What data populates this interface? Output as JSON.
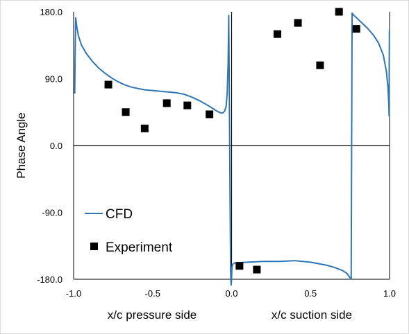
{
  "chart_data": {
    "type": "line",
    "title": "",
    "ylabel": "Phase Angle",
    "xlabels": [
      "x/c pressure side",
      "x/c suction side"
    ],
    "xlim": [
      -1.0,
      1.0
    ],
    "ylim": [
      -180,
      180
    ],
    "x_ticks": [
      "-1.0",
      "-0.5",
      "0.0",
      "0.5",
      "1.0"
    ],
    "y_ticks": [
      "180.0",
      "90.0",
      "0.0",
      "-90.0",
      "-180.0"
    ],
    "grid": false,
    "legend_position": "lower-left",
    "colors": {
      "cfd": "#2e75b6",
      "experiment": "#000000",
      "axis": "#000000"
    },
    "series": [
      {
        "name": "CFD",
        "style": "line",
        "points": [
          [
            -0.993,
            70
          ],
          [
            -0.99,
            130
          ],
          [
            -0.987,
            172
          ],
          [
            -0.98,
            160
          ],
          [
            -0.97,
            148
          ],
          [
            -0.95,
            135
          ],
          [
            -0.92,
            124
          ],
          [
            -0.88,
            113
          ],
          [
            -0.84,
            104
          ],
          [
            -0.8,
            97
          ],
          [
            -0.76,
            91
          ],
          [
            -0.72,
            86
          ],
          [
            -0.68,
            82
          ],
          [
            -0.64,
            79
          ],
          [
            -0.6,
            77
          ],
          [
            -0.55,
            75
          ],
          [
            -0.5,
            74
          ],
          [
            -0.45,
            73
          ],
          [
            -0.4,
            72
          ],
          [
            -0.35,
            71
          ],
          [
            -0.3,
            69
          ],
          [
            -0.25,
            65
          ],
          [
            -0.2,
            60
          ],
          [
            -0.15,
            54
          ],
          [
            -0.12,
            50
          ],
          [
            -0.09,
            46
          ],
          [
            -0.07,
            44
          ],
          [
            -0.055,
            44
          ],
          [
            -0.045,
            46
          ],
          [
            -0.035,
            52
          ],
          [
            -0.028,
            70
          ],
          [
            -0.022,
            110
          ],
          [
            -0.018,
            175
          ],
          [
            -0.014,
            60
          ],
          [
            -0.01,
            -60
          ],
          [
            -0.006,
            -170
          ],
          [
            -0.003,
            -188
          ],
          [
            0.0,
            -180
          ],
          [
            0.002,
            -165
          ],
          [
            0.006,
            -160
          ],
          [
            0.02,
            -158
          ],
          [
            0.1,
            -157
          ],
          [
            0.2,
            -156
          ],
          [
            0.3,
            -156
          ],
          [
            0.4,
            -155
          ],
          [
            0.45,
            -156
          ],
          [
            0.5,
            -157
          ],
          [
            0.55,
            -159
          ],
          [
            0.6,
            -161
          ],
          [
            0.65,
            -164
          ],
          [
            0.7,
            -168
          ],
          [
            0.73,
            -172
          ],
          [
            0.75,
            -178
          ],
          [
            0.757,
            -180
          ],
          [
            0.763,
            178
          ],
          [
            0.78,
            174
          ],
          [
            0.82,
            166
          ],
          [
            0.86,
            158
          ],
          [
            0.9,
            148
          ],
          [
            0.93,
            138
          ],
          [
            0.96,
            122
          ],
          [
            0.98,
            100
          ],
          [
            0.99,
            78
          ],
          [
            0.995,
            57
          ],
          [
            0.997,
            40
          ],
          [
            0.998,
            110
          ],
          [
            0.999,
            155
          ]
        ]
      },
      {
        "name": "Experiment",
        "style": "marker",
        "points": [
          [
            -0.78,
            82
          ],
          [
            -0.67,
            45
          ],
          [
            -0.55,
            23
          ],
          [
            -0.41,
            57
          ],
          [
            -0.28,
            54
          ],
          [
            -0.14,
            42
          ],
          [
            0.05,
            -162
          ],
          [
            0.16,
            -167
          ],
          [
            0.29,
            150
          ],
          [
            0.42,
            165
          ],
          [
            0.56,
            108
          ],
          [
            0.68,
            180
          ],
          [
            0.79,
            157
          ]
        ]
      }
    ]
  }
}
